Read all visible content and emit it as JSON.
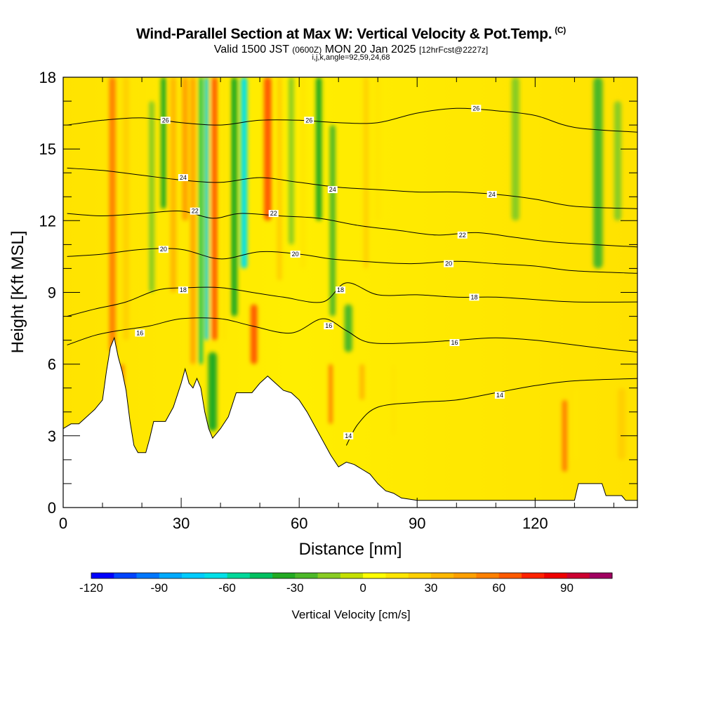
{
  "header": {
    "title": "Wind-Parallel Section at Max W: Vertical Velocity & Pot.Temp.",
    "title_suffix": "(C)",
    "valid_prefix": "Valid 1500 JST",
    "valid_utc": "(0600Z)",
    "valid_date": "MON 20 Jan 2025",
    "forecast_info": "[12hrFcst@2227z]",
    "indices": "i,j,k,angle=92,59,24,68"
  },
  "chart_data": {
    "type": "heatmap",
    "xlabel": "Distance [nm]",
    "ylabel": "Height [Kft MSL]",
    "xlim": [
      0,
      146
    ],
    "ylim": [
      0,
      18
    ],
    "x_ticks": [
      0,
      30,
      60,
      90,
      120
    ],
    "y_ticks": [
      0,
      3,
      6,
      9,
      12,
      15,
      18
    ],
    "colorbar": {
      "title": "Vertical Velocity [cm/s]",
      "range": [
        -120,
        110
      ],
      "step": 10,
      "tick_values": [
        -120,
        -90,
        -60,
        -30,
        0,
        30,
        60,
        90
      ],
      "colors": [
        "#0000ff",
        "#0044ff",
        "#0077ff",
        "#00aaff",
        "#00ccff",
        "#00e0e8",
        "#00d89a",
        "#00c060",
        "#22aa22",
        "#4cb828",
        "#88cc22",
        "#c4e000",
        "#ffff00",
        "#ffe600",
        "#ffd000",
        "#ffb800",
        "#ffa000",
        "#ff8000",
        "#ff5a00",
        "#ff2200",
        "#ee0000",
        "#cc0030",
        "#a00060",
        "#80008a",
        "#55008a"
      ]
    },
    "terrain_kft": [
      [
        0,
        3.3
      ],
      [
        2,
        3.5
      ],
      [
        4,
        3.5
      ],
      [
        6,
        3.8
      ],
      [
        8,
        4.1
      ],
      [
        10,
        4.5
      ],
      [
        11,
        5.7
      ],
      [
        12,
        6.7
      ],
      [
        13,
        7.1
      ],
      [
        14,
        6.3
      ],
      [
        15,
        5.7
      ],
      [
        16,
        4.9
      ],
      [
        17,
        3.6
      ],
      [
        18,
        2.6
      ],
      [
        19,
        2.3
      ],
      [
        21,
        2.3
      ],
      [
        22,
        2.9
      ],
      [
        23,
        3.6
      ],
      [
        26,
        3.6
      ],
      [
        28,
        4.2
      ],
      [
        30,
        5.2
      ],
      [
        31,
        5.8
      ],
      [
        32,
        5.2
      ],
      [
        33,
        5.0
      ],
      [
        34,
        5.4
      ],
      [
        35,
        5.0
      ],
      [
        36,
        4.0
      ],
      [
        37,
        3.3
      ],
      [
        38,
        2.9
      ],
      [
        40,
        3.3
      ],
      [
        42,
        3.8
      ],
      [
        44,
        4.8
      ],
      [
        48,
        4.8
      ],
      [
        50,
        5.2
      ],
      [
        52,
        5.5
      ],
      [
        54,
        5.2
      ],
      [
        56,
        4.9
      ],
      [
        58,
        4.8
      ],
      [
        60,
        4.5
      ],
      [
        62,
        4.0
      ],
      [
        64,
        3.4
      ],
      [
        66,
        2.8
      ],
      [
        68,
        2.2
      ],
      [
        70,
        1.7
      ],
      [
        72,
        1.9
      ],
      [
        74,
        1.8
      ],
      [
        76,
        1.6
      ],
      [
        78,
        1.4
      ],
      [
        80,
        1.0
      ],
      [
        82,
        0.7
      ],
      [
        84,
        0.6
      ],
      [
        86,
        0.4
      ],
      [
        90,
        0.3
      ],
      [
        130,
        0.3
      ],
      [
        131,
        1.0
      ],
      [
        137,
        1.0
      ],
      [
        138,
        0.5
      ],
      [
        142,
        0.5
      ],
      [
        143,
        0.3
      ],
      [
        146,
        0.3
      ]
    ],
    "theta_contours": [
      {
        "label": "14",
        "points": [
          [
            72,
            2.6
          ],
          [
            75,
            3.5
          ],
          [
            80,
            4.2
          ],
          [
            90,
            4.4
          ],
          [
            100,
            4.5
          ],
          [
            110,
            4.8
          ],
          [
            120,
            5.1
          ],
          [
            130,
            5.3
          ],
          [
            146,
            5.4
          ]
        ]
      },
      {
        "label": "16",
        "points": [
          [
            1,
            6.8
          ],
          [
            8,
            7.2
          ],
          [
            14,
            7.4
          ],
          [
            22,
            7.6
          ],
          [
            30,
            7.9
          ],
          [
            40,
            7.9
          ],
          [
            48,
            7.6
          ],
          [
            58,
            7.3
          ],
          [
            66,
            7.9
          ],
          [
            72,
            7.4
          ],
          [
            78,
            6.9
          ],
          [
            90,
            6.9
          ],
          [
            100,
            7.0
          ],
          [
            110,
            7.1
          ],
          [
            120,
            7.0
          ],
          [
            130,
            6.8
          ],
          [
            140,
            6.6
          ],
          [
            146,
            6.5
          ]
        ]
      },
      {
        "label": "18",
        "points": [
          [
            1,
            8.0
          ],
          [
            8,
            8.3
          ],
          [
            16,
            8.6
          ],
          [
            24,
            9.1
          ],
          [
            32,
            9.2
          ],
          [
            40,
            9.2
          ],
          [
            48,
            9.0
          ],
          [
            56,
            8.8
          ],
          [
            66,
            8.6
          ],
          [
            72,
            9.4
          ],
          [
            80,
            8.9
          ],
          [
            90,
            8.9
          ],
          [
            100,
            8.8
          ],
          [
            110,
            8.8
          ],
          [
            120,
            8.7
          ],
          [
            130,
            8.6
          ],
          [
            146,
            8.6
          ]
        ]
      },
      {
        "label": "20",
        "points": [
          [
            1,
            10.5
          ],
          [
            10,
            10.6
          ],
          [
            20,
            10.8
          ],
          [
            30,
            10.8
          ],
          [
            40,
            10.4
          ],
          [
            50,
            10.7
          ],
          [
            60,
            10.6
          ],
          [
            68,
            10.4
          ],
          [
            76,
            10.3
          ],
          [
            88,
            10.2
          ],
          [
            100,
            10.3
          ],
          [
            110,
            10.2
          ],
          [
            120,
            10.1
          ],
          [
            130,
            9.9
          ],
          [
            146,
            9.8
          ]
        ]
      },
      {
        "label": "22",
        "points": [
          [
            1,
            12.3
          ],
          [
            10,
            12.2
          ],
          [
            20,
            12.3
          ],
          [
            30,
            12.4
          ],
          [
            38,
            12.1
          ],
          [
            45,
            12.3
          ],
          [
            55,
            12.2
          ],
          [
            65,
            12.1
          ],
          [
            75,
            11.8
          ],
          [
            85,
            11.6
          ],
          [
            95,
            11.4
          ],
          [
            105,
            11.5
          ],
          [
            115,
            11.3
          ],
          [
            125,
            11.1
          ],
          [
            146,
            10.9
          ]
        ]
      },
      {
        "label": "24",
        "points": [
          [
            1,
            14.2
          ],
          [
            10,
            14.1
          ],
          [
            20,
            13.9
          ],
          [
            30,
            13.7
          ],
          [
            40,
            13.6
          ],
          [
            50,
            13.8
          ],
          [
            60,
            13.6
          ],
          [
            70,
            13.4
          ],
          [
            80,
            13.3
          ],
          [
            90,
            13.2
          ],
          [
            100,
            13.2
          ],
          [
            110,
            13.1
          ],
          [
            120,
            12.9
          ],
          [
            130,
            12.6
          ],
          [
            146,
            12.5
          ]
        ]
      },
      {
        "label": "26",
        "points": [
          [
            1,
            16.0
          ],
          [
            10,
            16.2
          ],
          [
            20,
            16.3
          ],
          [
            30,
            16.1
          ],
          [
            40,
            16.0
          ],
          [
            50,
            16.2
          ],
          [
            60,
            16.2
          ],
          [
            70,
            16.1
          ],
          [
            80,
            16.1
          ],
          [
            90,
            16.5
          ],
          [
            100,
            16.7
          ],
          [
            110,
            16.6
          ],
          [
            120,
            16.4
          ],
          [
            130,
            15.9
          ],
          [
            146,
            15.7
          ]
        ]
      }
    ],
    "contour_label_positions": [
      {
        "label": "14",
        "x": 72.5,
        "y": 3.0
      },
      {
        "label": "14",
        "x": 111,
        "y": 4.7
      },
      {
        "label": "16",
        "x": 19.5,
        "y": 7.3
      },
      {
        "label": "16",
        "x": 67.5,
        "y": 7.6
      },
      {
        "label": "16",
        "x": 99.5,
        "y": 6.9
      },
      {
        "label": "18",
        "x": 30.5,
        "y": 9.1
      },
      {
        "label": "18",
        "x": 70.5,
        "y": 9.1
      },
      {
        "label": "18",
        "x": 104.5,
        "y": 8.8
      },
      {
        "label": "20",
        "x": 25.5,
        "y": 10.8
      },
      {
        "label": "20",
        "x": 59,
        "y": 10.6
      },
      {
        "label": "20",
        "x": 98,
        "y": 10.2
      },
      {
        "label": "22",
        "x": 33.5,
        "y": 12.4
      },
      {
        "label": "22",
        "x": 53.5,
        "y": 12.3
      },
      {
        "label": "22",
        "x": 101.5,
        "y": 11.4
      },
      {
        "label": "24",
        "x": 30.5,
        "y": 13.8
      },
      {
        "label": "24",
        "x": 68.5,
        "y": 13.3
      },
      {
        "label": "24",
        "x": 109,
        "y": 13.1
      },
      {
        "label": "26",
        "x": 26,
        "y": 16.2
      },
      {
        "label": "26",
        "x": 62.5,
        "y": 16.2
      },
      {
        "label": "26",
        "x": 105,
        "y": 16.7
      }
    ],
    "velocity_features": [
      {
        "x": 12.5,
        "y_from": 6.5,
        "y_to": 18,
        "w_cms": 55,
        "width_nm": 1.6
      },
      {
        "x": 16,
        "y_from": 7,
        "y_to": 18,
        "w_cms": 20,
        "width_nm": 1.5
      },
      {
        "x": 15,
        "y_from": 4,
        "y_to": 6,
        "w_cms": 50,
        "width_nm": 1.0
      },
      {
        "x": 20,
        "y_from": 9,
        "y_to": 18,
        "w_cms": 15,
        "width_nm": 2.0
      },
      {
        "x": 22.5,
        "y_from": 9,
        "y_to": 17,
        "w_cms": -20,
        "width_nm": 1.4
      },
      {
        "x": 25.5,
        "y_from": 12.5,
        "y_to": 18,
        "w_cms": -35,
        "width_nm": 1.3
      },
      {
        "x": 28,
        "y_from": 9,
        "y_to": 18,
        "w_cms": 35,
        "width_nm": 1.5
      },
      {
        "x": 31,
        "y_from": 12,
        "y_to": 18,
        "w_cms": 40,
        "width_nm": 1.5
      },
      {
        "x": 33,
        "y_from": 6,
        "y_to": 18,
        "w_cms": 45,
        "width_nm": 1.2
      },
      {
        "x": 35,
        "y_from": 6,
        "y_to": 18,
        "w_cms": -45,
        "width_nm": 0.9
      },
      {
        "x": 36.5,
        "y_from": 7,
        "y_to": 18,
        "w_cms": -80,
        "width_nm": 0.9
      },
      {
        "x": 38.5,
        "y_from": 7,
        "y_to": 18,
        "w_cms": 60,
        "width_nm": 1.4
      },
      {
        "x": 38,
        "y_from": 3.2,
        "y_to": 6.5,
        "w_cms": -40,
        "width_nm": 2.2
      },
      {
        "x": 41,
        "y_from": 7,
        "y_to": 18,
        "w_cms": 15,
        "width_nm": 1.3
      },
      {
        "x": 43.5,
        "y_from": 8,
        "y_to": 18,
        "w_cms": -40,
        "width_nm": 1.6
      },
      {
        "x": 46,
        "y_from": 10,
        "y_to": 18,
        "w_cms": -70,
        "width_nm": 1.6
      },
      {
        "x": 48.5,
        "y_from": 6.0,
        "y_to": 8.5,
        "w_cms": 60,
        "width_nm": 1.7
      },
      {
        "x": 52,
        "y_from": 12,
        "y_to": 18,
        "w_cms": 65,
        "width_nm": 1.9
      },
      {
        "x": 55,
        "y_from": 9.5,
        "y_to": 18,
        "w_cms": 20,
        "width_nm": 1.3
      },
      {
        "x": 58,
        "y_from": 11,
        "y_to": 18,
        "w_cms": -20,
        "width_nm": 1.3
      },
      {
        "x": 61,
        "y_from": 10,
        "y_to": 18,
        "w_cms": 15,
        "width_nm": 1.2
      },
      {
        "x": 65,
        "y_from": 12,
        "y_to": 18,
        "w_cms": -35,
        "width_nm": 1.5
      },
      {
        "x": 68.5,
        "y_from": 8,
        "y_to": 16,
        "w_cms": -25,
        "width_nm": 1.4
      },
      {
        "x": 68,
        "y_from": 3.5,
        "y_to": 6.0,
        "w_cms": 55,
        "width_nm": 1.0
      },
      {
        "x": 72.5,
        "y_from": 6.5,
        "y_to": 8.5,
        "w_cms": -25,
        "width_nm": 2.0
      },
      {
        "x": 76,
        "y_from": 4.5,
        "y_to": 6.0,
        "w_cms": 35,
        "width_nm": 1.2
      },
      {
        "x": 77,
        "y_from": 10,
        "y_to": 18,
        "w_cms": 20,
        "width_nm": 1.2
      },
      {
        "x": 80,
        "y_from": 12,
        "y_to": 18,
        "w_cms": 15,
        "width_nm": 1.5
      },
      {
        "x": 84,
        "y_from": 3,
        "y_to": 6,
        "w_cms": 15,
        "width_nm": 1.2
      },
      {
        "x": 115,
        "y_from": 12,
        "y_to": 18,
        "w_cms": -12,
        "width_nm": 2.0
      },
      {
        "x": 127.5,
        "y_from": 1.5,
        "y_to": 4.5,
        "w_cms": 50,
        "width_nm": 1.3
      },
      {
        "x": 130.5,
        "y_from": 2,
        "y_to": 5,
        "w_cms": 10,
        "width_nm": 1.2
      },
      {
        "x": 136,
        "y_from": 10,
        "y_to": 18,
        "w_cms": -22,
        "width_nm": 2.4
      },
      {
        "x": 141,
        "y_from": 12,
        "y_to": 17,
        "w_cms": -14,
        "width_nm": 1.8
      },
      {
        "x": 142,
        "y_from": 2,
        "y_to": 5,
        "w_cms": 20,
        "width_nm": 2.0
      }
    ]
  }
}
